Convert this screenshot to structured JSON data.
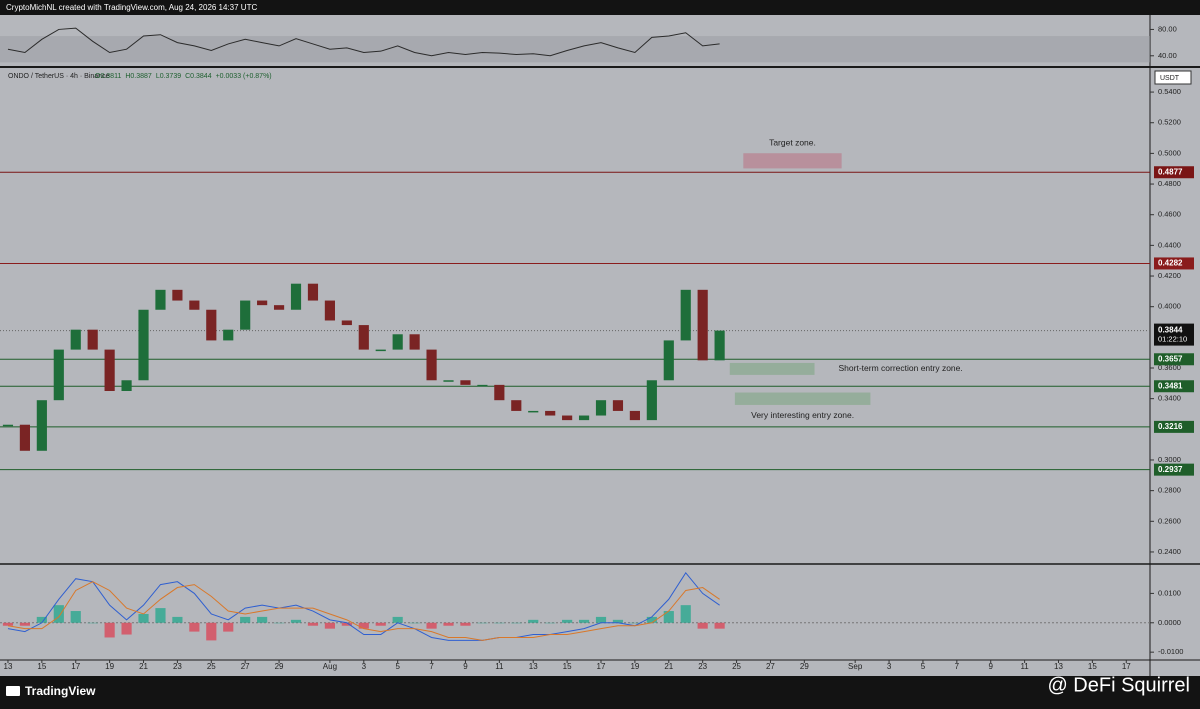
{
  "header": {
    "credit": "CryptoMichNL created with TradingView.com, Aug 24, 2026 14:37 UTC"
  },
  "chart_data": [
    {
      "type": "candlestick",
      "title": "ONDO / TetherUS · 4h · Binance",
      "quote_labels": [
        "O0.3811",
        "H0.3887",
        "L0.3739",
        "C0.3844",
        "+0.0033 (+0.87%)"
      ],
      "currency": "USDT",
      "x": [
        0,
        1,
        2,
        3,
        4,
        5,
        6,
        7,
        8,
        9,
        10,
        11,
        12,
        13,
        14,
        15,
        16,
        17,
        18,
        19,
        20,
        21,
        22,
        23,
        24,
        25,
        26,
        27,
        28,
        29,
        30,
        31,
        32,
        33,
        34,
        35,
        36,
        37,
        38,
        39,
        40,
        41,
        42
      ],
      "values": [
        0.323,
        0.306,
        0.339,
        0.372,
        0.385,
        0.372,
        0.345,
        0.352,
        0.398,
        0.411,
        0.404,
        0.398,
        0.378,
        0.385,
        0.404,
        0.401,
        0.398,
        0.415,
        0.404,
        0.391,
        0.388,
        0.372,
        0.372,
        0.382,
        0.372,
        0.352,
        0.352,
        0.349,
        0.349,
        0.339,
        0.332,
        0.332,
        0.329,
        0.326,
        0.329,
        0.339,
        0.332,
        0.326,
        0.352,
        0.378,
        0.411,
        0.365,
        0.3844
      ],
      "up_color": "#1e6e3a",
      "down_color": "#7a2424",
      "xlim": [
        -0.47,
        67.4
      ],
      "xticks": [
        {
          "value": 0,
          "label": "13"
        },
        {
          "value": 2,
          "label": "15"
        },
        {
          "value": 4,
          "label": "17"
        },
        {
          "value": 6,
          "label": "19"
        },
        {
          "value": 8,
          "label": "21"
        },
        {
          "value": 10,
          "label": "23"
        },
        {
          "value": 12,
          "label": "25"
        },
        {
          "value": 14,
          "label": "27"
        },
        {
          "value": 16,
          "label": "29"
        },
        {
          "value": 19,
          "label": "Aug"
        },
        {
          "value": 21,
          "label": "3"
        },
        {
          "value": 23,
          "label": "5"
        },
        {
          "value": 25,
          "label": "7"
        },
        {
          "value": 27,
          "label": "9"
        },
        {
          "value": 29,
          "label": "11"
        },
        {
          "value": 31,
          "label": "13"
        },
        {
          "value": 33,
          "label": "15"
        },
        {
          "value": 35,
          "label": "17"
        },
        {
          "value": 37,
          "label": "19"
        },
        {
          "value": 39,
          "label": "21"
        },
        {
          "value": 41,
          "label": "23"
        },
        {
          "value": 43,
          "label": "25"
        },
        {
          "value": 45,
          "label": "27"
        },
        {
          "value": 47,
          "label": "29"
        },
        {
          "value": 50,
          "label": "Sep"
        },
        {
          "value": 52,
          "label": "3"
        },
        {
          "value": 54,
          "label": "5"
        },
        {
          "value": 56,
          "label": "7"
        },
        {
          "value": 58,
          "label": "9"
        },
        {
          "value": 60,
          "label": "11"
        },
        {
          "value": 62,
          "label": "13"
        },
        {
          "value": 64,
          "label": "15"
        },
        {
          "value": 66,
          "label": "17"
        }
      ],
      "ylim": [
        0.2328,
        0.5557
      ],
      "yticks": [
        {
          "value": 0.54,
          "label": "0.5400"
        },
        {
          "value": 0.52,
          "label": "0.5200"
        },
        {
          "value": 0.5,
          "label": "0.5000"
        },
        {
          "value": 0.48,
          "label": "0.4800"
        },
        {
          "value": 0.46,
          "label": "0.4600"
        },
        {
          "value": 0.44,
          "label": "0.4400"
        },
        {
          "value": 0.42,
          "label": "0.4200"
        },
        {
          "value": 0.4,
          "label": "0.4000"
        },
        {
          "value": 0.36,
          "label": "0.3600"
        },
        {
          "value": 0.34,
          "label": "0.3400"
        },
        {
          "value": 0.3,
          "label": "0.3000"
        },
        {
          "value": 0.28,
          "label": "0.2800"
        },
        {
          "value": 0.26,
          "label": "0.2600"
        },
        {
          "value": 0.24,
          "label": "0.2400"
        }
      ],
      "levels": [
        {
          "value": 0.4877,
          "color": "#7a1515"
        },
        {
          "value": 0.4282,
          "color": "#8a1c1c"
        },
        {
          "value": 0.3657,
          "color": "#1f5e2a"
        },
        {
          "value": 0.3481,
          "color": "#1f5e2a"
        },
        {
          "value": 0.3216,
          "color": "#1f5e2a"
        },
        {
          "value": 0.2937,
          "color": "#1f5e2a"
        }
      ],
      "last": 0.3844,
      "countdown": "01:22:10",
      "zones": [
        {
          "label": "Target zone.",
          "low": 0.4902,
          "high": 0.5001,
          "xrange": [
            43.4,
            49.2
          ],
          "color": "#b88a96",
          "label_side": "top"
        },
        {
          "label": "Short-term correction entry zone.",
          "low": 0.3555,
          "high": 0.3633,
          "xrange": [
            42.6,
            47.6
          ],
          "color": "#8fac95",
          "label_side": "right"
        },
        {
          "label": "Very interesting entry zone.",
          "low": 0.3359,
          "high": 0.344,
          "xrange": [
            42.9,
            50.9
          ],
          "color": "#8fac95",
          "label_side": "bottom"
        }
      ]
    },
    {
      "type": "line",
      "color": "#2b2b2b",
      "values": [
        50,
        45,
        65,
        80,
        82,
        62,
        45,
        50,
        70,
        72,
        60,
        55,
        48,
        58,
        65,
        60,
        55,
        66,
        58,
        50,
        52,
        45,
        47,
        55,
        45,
        40,
        45,
        42,
        45,
        44,
        42,
        43,
        40,
        48,
        55,
        60,
        52,
        45,
        68,
        70,
        75,
        55,
        58
      ],
      "band": [
        30,
        70
      ],
      "band_color": "#9a9ca2",
      "ylim": [
        24.5,
        101.9
      ],
      "yticks": [
        {
          "value": 80,
          "label": "80.00"
        },
        {
          "value": 40,
          "label": "40.00"
        }
      ]
    },
    {
      "type": "macd",
      "series": [
        {
          "color": "#2f5fd0",
          "values": [
            -0.002,
            -0.003,
            0.0,
            0.008,
            0.015,
            0.014,
            0.006,
            0.001,
            0.006,
            0.013,
            0.014,
            0.01,
            0.003,
            0.001,
            0.005,
            0.006,
            0.005,
            0.006,
            0.004,
            0.001,
            0.0,
            -0.004,
            -0.004,
            0.0,
            -0.002,
            -0.005,
            -0.006,
            -0.006,
            -0.006,
            -0.005,
            -0.005,
            -0.004,
            -0.004,
            -0.003,
            -0.002,
            0.0,
            0.0,
            -0.001,
            0.002,
            0.008,
            0.017,
            0.01,
            0.006
          ]
        },
        {
          "color": "#d9782a",
          "values": [
            -0.001,
            -0.002,
            -0.002,
            0.002,
            0.011,
            0.014,
            0.011,
            0.005,
            0.003,
            0.008,
            0.012,
            0.013,
            0.009,
            0.004,
            0.003,
            0.004,
            0.005,
            0.005,
            0.005,
            0.003,
            0.001,
            -0.002,
            -0.003,
            -0.002,
            -0.002,
            -0.003,
            -0.005,
            -0.005,
            -0.006,
            -0.005,
            -0.005,
            -0.005,
            -0.004,
            -0.004,
            -0.003,
            -0.002,
            -0.001,
            -0.001,
            0.0,
            0.004,
            0.011,
            0.012,
            0.008
          ]
        }
      ],
      "histogram": [
        -0.001,
        -0.001,
        0.002,
        0.006,
        0.004,
        0.0,
        -0.005,
        -0.004,
        0.003,
        0.005,
        0.002,
        -0.003,
        -0.006,
        -0.003,
        0.002,
        0.002,
        0.0,
        0.001,
        -0.001,
        -0.002,
        -0.001,
        -0.002,
        -0.001,
        0.002,
        0.0,
        -0.002,
        -0.001,
        -0.001,
        0.0,
        0.0,
        0.0,
        0.001,
        0.0,
        0.001,
        0.001,
        0.002,
        0.001,
        0.0,
        0.002,
        0.004,
        0.006,
        -0.002,
        -0.002
      ],
      "pos_color": "#2aa88e",
      "neg_color": "#d9485a",
      "ylim": [
        -0.01267,
        0.01967
      ],
      "yticks": [
        {
          "value": 0.01,
          "label": "0.0100"
        },
        {
          "value": 0,
          "label": "0.0000"
        },
        {
          "value": -0.01,
          "label": "-0.0100"
        }
      ]
    }
  ],
  "footer": {
    "brand": "TradingView",
    "watermark": "@ DeFi Squirrel"
  }
}
